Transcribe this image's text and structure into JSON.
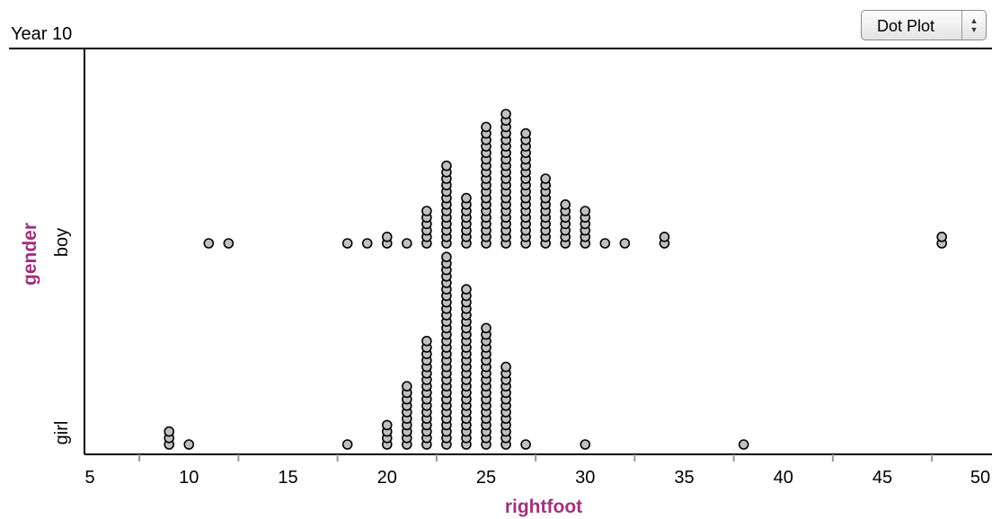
{
  "header": {
    "title": "Year 10",
    "plot_type": "Dot Plot",
    "plot_type_arrows": [
      "▲",
      "▼"
    ]
  },
  "colors": {
    "axis_title": "#a1307f",
    "dot_fill": "#c0c0c0",
    "dot_stroke": "#000000",
    "tick_mark": "#999999"
  },
  "chart_data": {
    "type": "dot",
    "xlabel": "rightfoot",
    "ylabel": "gender",
    "xlim": [
      5,
      50
    ],
    "x_ticks": [
      5,
      10,
      15,
      20,
      25,
      30,
      35,
      40,
      45,
      50
    ],
    "categories": [
      "boy",
      "girl"
    ],
    "series": [
      {
        "name": "boy",
        "counts": {
          "11": 1,
          "12": 1,
          "18": 1,
          "19": 1,
          "20": 2,
          "21": 1,
          "22": 6,
          "23": 13,
          "24": 8,
          "25": 19,
          "26": 21,
          "27": 18,
          "28": 11,
          "29": 7,
          "30": 6,
          "31": 1,
          "32": 1,
          "34": 2,
          "48": 2
        }
      },
      {
        "name": "girl",
        "counts": {
          "9": 3,
          "10": 1,
          "18": 1,
          "20": 4,
          "21": 10,
          "22": 17,
          "23": 30,
          "24": 25,
          "25": 19,
          "26": 13,
          "27": 1,
          "30": 1,
          "38": 1
        }
      }
    ]
  }
}
